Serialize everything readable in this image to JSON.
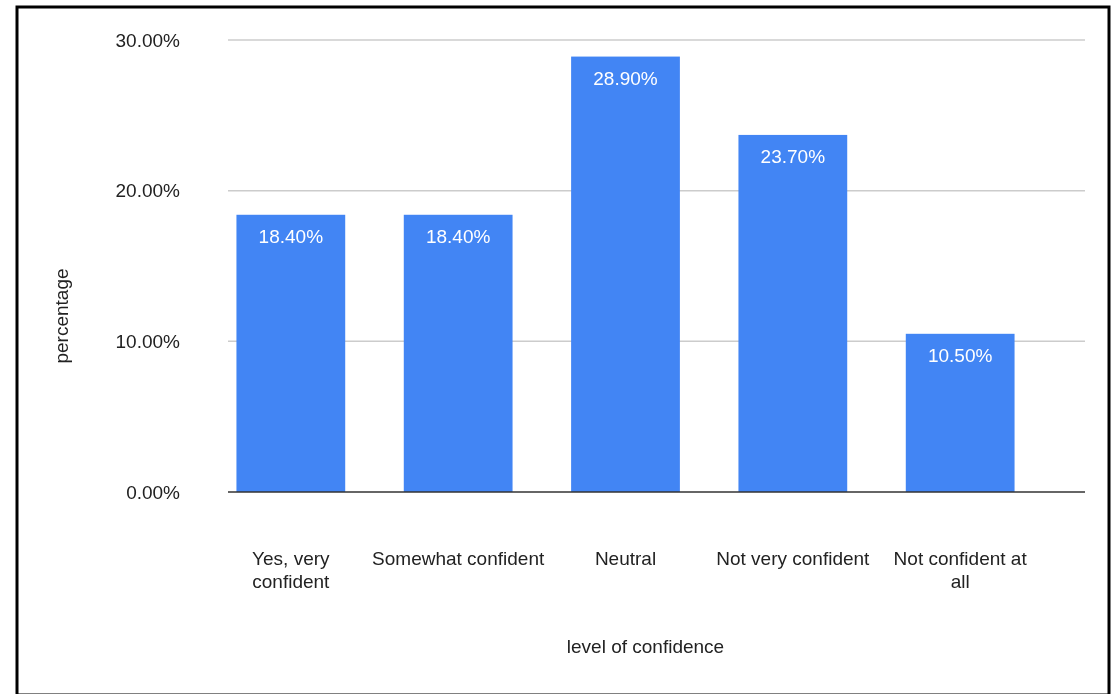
{
  "chart_data": {
    "type": "bar",
    "xlabel": "level of confidence",
    "ylabel": "percentage",
    "categories": [
      "Yes, very confident",
      "Somewhat confident",
      "Neutral",
      "Not very confident",
      "Not confident at all"
    ],
    "values": [
      18.4,
      18.4,
      28.9,
      23.7,
      10.5
    ],
    "value_labels": [
      "18.40%",
      "18.40%",
      "28.90%",
      "23.70%",
      "10.50%"
    ],
    "color": "#4285f4",
    "ylim": [
      0,
      30
    ],
    "yticks": [
      {
        "value": 0,
        "label": "0.00%"
      },
      {
        "value": 10,
        "label": "10.00%"
      },
      {
        "value": 20,
        "label": "20.00%"
      },
      {
        "value": 30,
        "label": "30.00%"
      }
    ],
    "grid": "y"
  }
}
